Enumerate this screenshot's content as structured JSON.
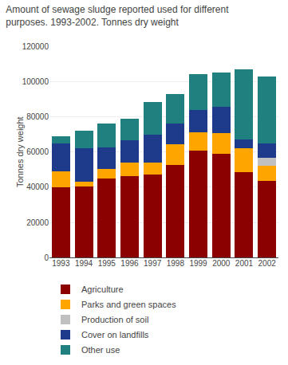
{
  "chart_data": {
    "type": "bar",
    "stacked": true,
    "title": "Amount of sewage sludge reported used for different\npurposes. 1993-2002. Tonnes dry weight",
    "ylabel": "Tonnes dry weight",
    "categories": [
      "1993",
      "1994",
      "1995",
      "1996",
      "1997",
      "1998",
      "1999",
      "2000",
      "2001",
      "2002"
    ],
    "series": [
      {
        "name": "Agriculture",
        "color": "#8B0000",
        "values": [
          40000,
          40500,
          45000,
          46500,
          47000,
          52500,
          61000,
          59000,
          48500,
          43500
        ]
      },
      {
        "name": "Parks and green spaces",
        "color": "#FFA500",
        "values": [
          9000,
          2500,
          5500,
          7500,
          7000,
          12000,
          10000,
          11500,
          13500,
          8500
        ]
      },
      {
        "name": "Production of soil",
        "color": "#C0C0C0",
        "values": [
          0,
          0,
          0,
          0,
          0,
          0,
          0,
          0,
          0,
          4500
        ]
      },
      {
        "name": "Cover on landfills",
        "color": "#1E3A8A",
        "values": [
          16000,
          19000,
          12000,
          12500,
          16000,
          11500,
          13000,
          15000,
          5000,
          8500
        ]
      },
      {
        "name": "Other use",
        "color": "#208080",
        "values": [
          4000,
          10000,
          13500,
          12500,
          18500,
          17000,
          20000,
          19500,
          40000,
          38000
        ]
      }
    ],
    "ylim": [
      0,
      120000
    ],
    "yticks": [
      0,
      20000,
      40000,
      60000,
      80000,
      100000,
      120000
    ],
    "grid": true,
    "legend": "bottom"
  }
}
